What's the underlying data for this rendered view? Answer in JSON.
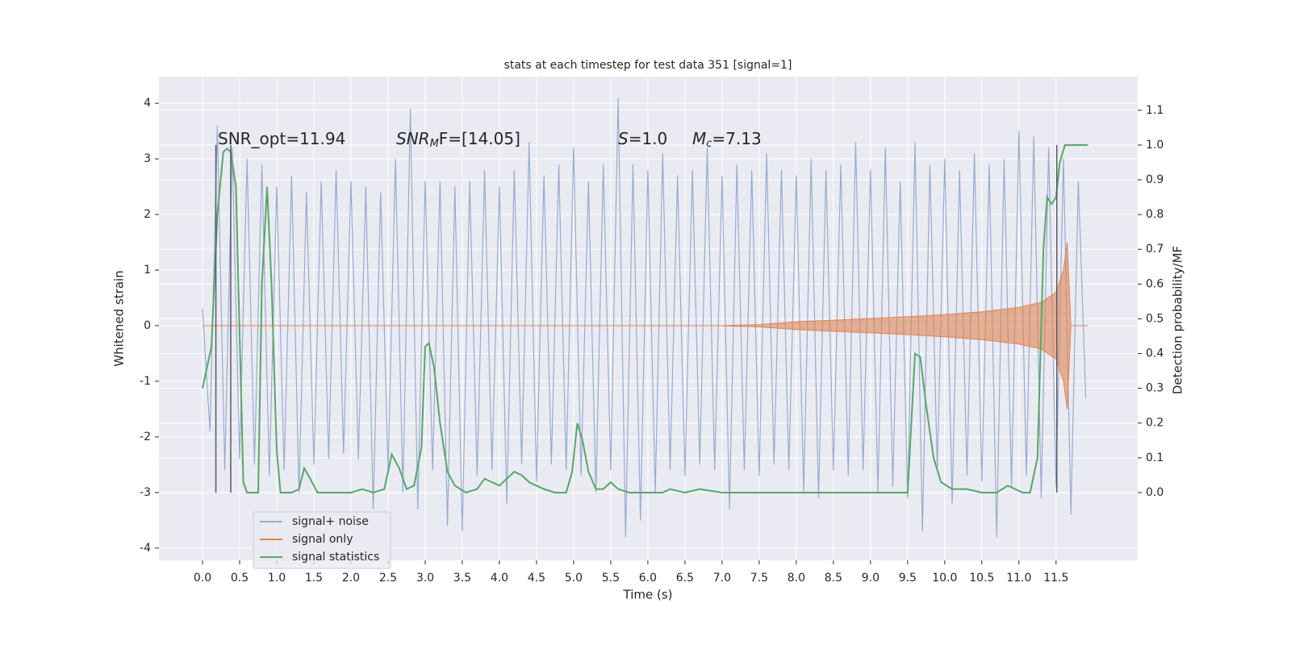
{
  "chart_data": {
    "type": "line",
    "title": "stats at each timestep for test data 351 [signal=1]",
    "xlabel": "Time (s)",
    "ylabel": "Whitened strain",
    "y2label": "Detection probability/MF",
    "xlim": [
      -0.587,
      12.6
    ],
    "ylim": [
      -4.22,
      4.48
    ],
    "y2lim": [
      -0.195,
      1.197
    ],
    "xticks": [
      {
        "value": 0,
        "label": "0.0"
      },
      0.5,
      {
        "value": 1,
        "label": "1.0"
      },
      1.5,
      {
        "value": 2,
        "label": "2.0"
      },
      2.5,
      {
        "value": 3,
        "label": "3.0"
      },
      3.5,
      {
        "value": 4,
        "label": "4.0"
      },
      4.5,
      {
        "value": 5,
        "label": "5.0"
      },
      5.5,
      {
        "value": 6,
        "label": "6.0"
      },
      6.5,
      {
        "value": 7,
        "label": "7.0"
      },
      7.5,
      {
        "value": 8,
        "label": "8.0"
      },
      8.5,
      {
        "value": 9,
        "label": "9.0"
      },
      9.5,
      {
        "value": 10,
        "label": "10.0"
      },
      10.5,
      {
        "value": 11,
        "label": "11.0"
      },
      11.5
    ],
    "yticks": [
      -4,
      -3,
      -2,
      -1,
      0,
      1,
      2,
      3,
      4
    ],
    "y2ticks": [
      {
        "value": 0,
        "label": "0.0"
      },
      0.1,
      0.2,
      0.3,
      0.4,
      0.5,
      0.6,
      0.7,
      0.8,
      0.9,
      {
        "value": 1,
        "label": "1.0"
      },
      1.1
    ],
    "grid": true,
    "legend": "lower left",
    "annotations": [
      [
        "SNR_opt=11.94"
      ],
      [
        "SNR",
        "M",
        "F=[14.05]"
      ],
      [
        "S",
        "=1.0"
      ],
      [
        "M",
        "c",
        "=7.13"
      ]
    ],
    "vlines": {
      "x": [
        0.18,
        0.38,
        11.51
      ],
      "y2range": [
        0,
        1
      ],
      "color": "#55596a"
    },
    "series": [
      {
        "name": "signal+ noise",
        "color": "#98abd0",
        "style": "zigzag",
        "x": [
          0.0,
          0.1,
          0.2,
          0.3,
          0.4,
          0.5,
          0.6,
          0.7,
          0.8,
          0.9,
          1.0,
          1.1,
          1.2,
          1.3,
          1.4,
          1.5,
          1.6,
          1.7,
          1.8,
          1.9,
          2.0,
          2.1,
          2.2,
          2.3,
          2.4,
          2.5,
          2.6,
          2.7,
          2.8,
          2.9,
          3.0,
          3.1,
          3.2,
          3.3,
          3.4,
          3.5,
          3.6,
          3.7,
          3.8,
          3.9,
          4.0,
          4.1,
          4.2,
          4.3,
          4.4,
          4.5,
          4.6,
          4.7,
          4.8,
          4.9,
          5.0,
          5.1,
          5.2,
          5.3,
          5.4,
          5.5,
          5.6,
          5.7,
          5.8,
          5.9,
          6.0,
          6.1,
          6.2,
          6.3,
          6.4,
          6.5,
          6.6,
          6.7,
          6.8,
          6.9,
          7.0,
          7.1,
          7.2,
          7.3,
          7.4,
          7.5,
          7.6,
          7.7,
          7.8,
          7.9,
          8.0,
          8.1,
          8.2,
          8.3,
          8.4,
          8.5,
          8.6,
          8.7,
          8.8,
          8.9,
          9.0,
          9.1,
          9.2,
          9.3,
          9.4,
          9.5,
          9.6,
          9.7,
          9.8,
          9.9,
          10.0,
          10.1,
          10.2,
          10.3,
          10.4,
          10.5,
          10.6,
          10.7,
          10.8,
          10.9,
          11.0,
          11.1,
          11.2,
          11.3,
          11.4,
          11.5,
          11.6,
          11.7,
          11.8,
          11.9
        ],
        "values": [
          0.3,
          -1.9,
          3.6,
          -2.6,
          3.2,
          -2.4,
          3.0,
          -2.5,
          2.9,
          -2.7,
          2.5,
          -2.6,
          2.7,
          -3.0,
          2.4,
          -2.5,
          2.6,
          -2.4,
          2.8,
          -2.3,
          2.6,
          -2.4,
          2.5,
          -3.3,
          2.4,
          -2.6,
          3.0,
          -3.0,
          3.9,
          -3.3,
          2.6,
          -2.6,
          2.6,
          -3.6,
          2.5,
          -3.7,
          2.6,
          -2.7,
          2.8,
          -2.6,
          2.5,
          -3.2,
          2.8,
          -2.5,
          3.3,
          -2.8,
          2.7,
          -2.5,
          2.9,
          -2.6,
          3.2,
          -2.7,
          2.6,
          -3.0,
          2.9,
          -2.6,
          4.1,
          -3.8,
          2.9,
          -3.5,
          2.8,
          -3.0,
          3.1,
          -2.6,
          2.7,
          -2.7,
          2.8,
          -2.5,
          3.2,
          -2.6,
          2.7,
          -3.3,
          2.9,
          -2.6,
          2.8,
          -2.7,
          3.1,
          -2.5,
          2.8,
          -2.6,
          2.7,
          -3.0,
          3.0,
          -3.1,
          2.8,
          -2.6,
          2.9,
          -2.7,
          3.3,
          -2.6,
          2.8,
          -3.0,
          3.2,
          -2.9,
          2.6,
          -3.1,
          3.3,
          -3.7,
          2.9,
          -2.6,
          3.0,
          -3.2,
          2.8,
          -2.7,
          3.1,
          -2.8,
          2.9,
          -3.8,
          3.0,
          -2.9,
          3.5,
          -2.7,
          3.4,
          -3.1,
          3.2,
          -2.9,
          3.0,
          -3.4,
          2.6,
          -1.3
        ]
      },
      {
        "name": "signal only",
        "color": "#dd8452",
        "style": "envelope",
        "x": [
          0.0,
          7.0,
          7.5,
          8.0,
          8.5,
          9.0,
          9.5,
          10.0,
          10.5,
          11.0,
          11.3,
          11.5,
          11.6,
          11.65,
          11.7,
          11.93
        ],
        "values": [
          0.0,
          0.0,
          0.02,
          0.07,
          0.1,
          0.13,
          0.16,
          0.2,
          0.25,
          0.33,
          0.42,
          0.6,
          1.0,
          1.5,
          0.0,
          0.0
        ]
      },
      {
        "name": "signal statistics",
        "color": "#55a868",
        "style": "line",
        "axis": "y2",
        "x": [
          0.0,
          0.12,
          0.2,
          0.28,
          0.33,
          0.38,
          0.45,
          0.55,
          0.6,
          0.75,
          0.8,
          0.87,
          0.93,
          1.0,
          1.05,
          1.2,
          1.3,
          1.37,
          1.45,
          1.55,
          2.0,
          2.15,
          2.3,
          2.45,
          2.55,
          2.65,
          2.75,
          2.85,
          2.95,
          3.0,
          3.05,
          3.12,
          3.2,
          3.3,
          3.4,
          3.55,
          3.7,
          3.8,
          3.9,
          4.0,
          4.1,
          4.2,
          4.3,
          4.4,
          4.6,
          4.75,
          4.9,
          4.98,
          5.05,
          5.12,
          5.2,
          5.3,
          5.4,
          5.5,
          5.6,
          5.75,
          6.2,
          6.3,
          6.5,
          6.7,
          7.0,
          9.5,
          9.6,
          9.67,
          9.75,
          9.85,
          9.95,
          10.1,
          10.3,
          10.5,
          10.7,
          10.85,
          10.95,
          11.05,
          11.15,
          11.25,
          11.33,
          11.38,
          11.44,
          11.5,
          11.55,
          11.62,
          11.75,
          11.93
        ],
        "values": [
          0.3,
          0.42,
          0.8,
          0.98,
          0.99,
          0.98,
          0.88,
          0.03,
          0.0,
          0.0,
          0.6,
          0.88,
          0.6,
          0.12,
          0.0,
          0.0,
          0.01,
          0.07,
          0.04,
          0.0,
          0.0,
          0.01,
          0.0,
          0.01,
          0.11,
          0.07,
          0.01,
          0.02,
          0.13,
          0.42,
          0.43,
          0.36,
          0.2,
          0.06,
          0.02,
          0.0,
          0.01,
          0.04,
          0.03,
          0.02,
          0.04,
          0.06,
          0.05,
          0.03,
          0.01,
          0.0,
          0.0,
          0.06,
          0.2,
          0.15,
          0.06,
          0.01,
          0.01,
          0.03,
          0.01,
          0.0,
          0.0,
          0.01,
          0.0,
          0.01,
          0.0,
          0.0,
          0.4,
          0.39,
          0.25,
          0.1,
          0.03,
          0.01,
          0.01,
          0.0,
          0.0,
          0.02,
          0.01,
          0.0,
          0.0,
          0.1,
          0.7,
          0.85,
          0.83,
          0.85,
          0.95,
          1.0,
          1.0,
          1.0
        ]
      }
    ]
  }
}
